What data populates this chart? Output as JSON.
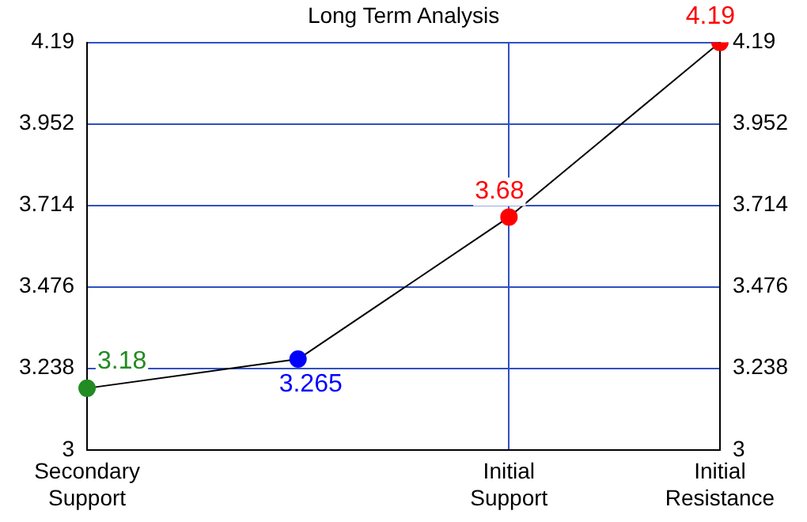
{
  "chart_data": {
    "type": "line",
    "title": "Long Term Analysis",
    "categories": [
      "Secondary Support",
      null,
      "Initial Support",
      "Initial Resistance"
    ],
    "series": [
      {
        "color": "#000000",
        "colors": [
          "#228b22",
          "#0000ff",
          "#ff0000",
          "#ff0000"
        ],
        "values": [
          3.18,
          3.265,
          3.68,
          4.19
        ]
      }
    ],
    "ylim": [
      3,
      4.19
    ],
    "yticks": [
      3,
      3.238,
      3.476,
      3.714,
      3.952,
      4.19
    ],
    "y2lim": [
      3,
      4.19
    ],
    "y2ticks": [
      3,
      3.238,
      3.476,
      3.714,
      3.952,
      4.19
    ],
    "grid": true,
    "legend": false,
    "marker": "circle",
    "line_style": "solid",
    "data_labels": true
  }
}
